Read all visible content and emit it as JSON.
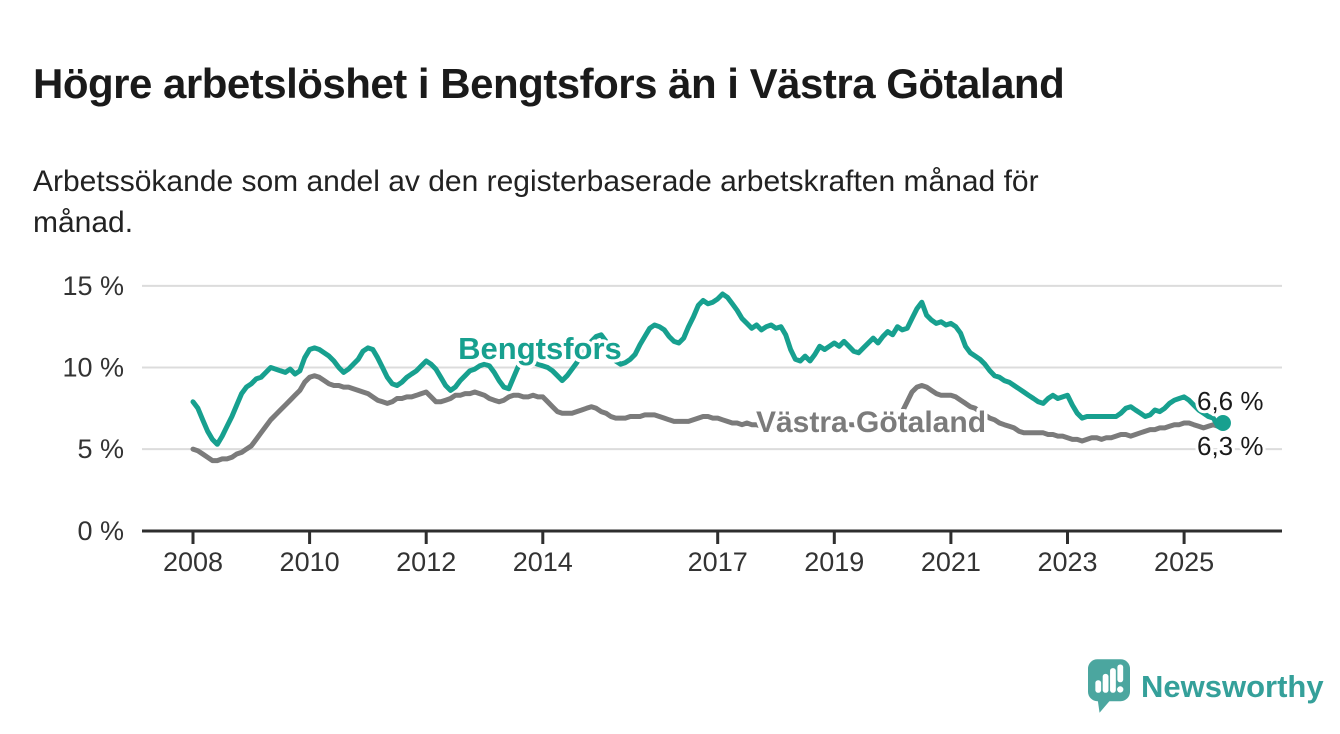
{
  "header": {
    "title": "Högre arbetslöshet i Bengtsfors än i Västra Götaland",
    "subtitle": "Arbetssökande som andel av den registerbaserade arbetskraften månad för\nmånad."
  },
  "branding": {
    "logo_text": "Newsworthy",
    "logo_icon": "newsworthy-chart-bubble-icon",
    "icon_color": "#4ba69f",
    "text_color": "#35a09a"
  },
  "chart_data": {
    "type": "line",
    "title": "Högre arbetslöshet i Bengtsfors än i Västra Götaland",
    "xlabel": "",
    "ylabel": "",
    "unit": "percent of registered labour force",
    "grid": "horizontal",
    "ylim": [
      0,
      16
    ],
    "x_start": {
      "year": 2008,
      "month": 1
    },
    "x_step_months": 1,
    "x_ticks": [
      "2008",
      "2010",
      "2012",
      "2014",
      "2017",
      "2019",
      "2021",
      "2023",
      "2025"
    ],
    "y_ticks": [
      {
        "value": 0,
        "label": "0 %"
      },
      {
        "value": 5,
        "label": "5 %"
      },
      {
        "value": 10,
        "label": "10 %"
      },
      {
        "value": 15,
        "label": "15 %"
      }
    ],
    "series": [
      {
        "name": "Bengtsfors",
        "color": "#17a08f",
        "end_label": "6,6 %",
        "end_dot": true,
        "values": [
          7.9,
          7.5,
          6.8,
          6.1,
          5.6,
          5.3,
          5.8,
          6.4,
          7.0,
          7.7,
          8.4,
          8.8,
          9.0,
          9.3,
          9.4,
          9.7,
          10.0,
          9.9,
          9.8,
          9.7,
          9.9,
          9.6,
          9.8,
          10.6,
          11.1,
          11.2,
          11.1,
          10.9,
          10.7,
          10.4,
          10.0,
          9.7,
          9.9,
          10.2,
          10.5,
          11.0,
          11.2,
          11.1,
          10.6,
          10.0,
          9.4,
          9.0,
          8.9,
          9.1,
          9.4,
          9.6,
          9.8,
          10.1,
          10.4,
          10.2,
          9.9,
          9.4,
          8.9,
          8.6,
          8.8,
          9.2,
          9.5,
          9.8,
          9.9,
          10.1,
          10.2,
          10.1,
          9.7,
          9.2,
          8.8,
          8.7,
          9.4,
          10.1,
          10.2,
          10.4,
          10.3,
          10.2,
          10.1,
          10.0,
          9.8,
          9.5,
          9.2,
          9.5,
          9.9,
          10.3,
          10.8,
          11.2,
          11.6,
          11.9,
          12.0,
          11.6,
          11.0,
          10.4,
          10.2,
          10.3,
          10.5,
          10.8,
          11.4,
          11.9,
          12.4,
          12.6,
          12.5,
          12.3,
          11.9,
          11.6,
          11.5,
          11.8,
          12.5,
          13.1,
          13.8,
          14.1,
          13.9,
          14.0,
          14.2,
          14.5,
          14.3,
          13.9,
          13.5,
          13.0,
          12.7,
          12.4,
          12.6,
          12.3,
          12.5,
          12.6,
          12.4,
          12.5,
          12.0,
          11.1,
          10.5,
          10.4,
          10.7,
          10.4,
          10.8,
          11.3,
          11.1,
          11.3,
          11.5,
          11.3,
          11.6,
          11.3,
          11.0,
          10.9,
          11.2,
          11.5,
          11.8,
          11.5,
          11.9,
          12.2,
          12.0,
          12.5,
          12.3,
          12.4,
          13.0,
          13.6,
          14.0,
          13.2,
          12.9,
          12.7,
          12.8,
          12.6,
          12.7,
          12.5,
          12.1,
          11.3,
          10.9,
          10.7,
          10.5,
          10.2,
          9.8,
          9.5,
          9.4,
          9.2,
          9.1,
          8.9,
          8.7,
          8.5,
          8.3,
          8.1,
          7.9,
          7.8,
          8.1,
          8.3,
          8.1,
          8.2,
          8.3,
          7.7,
          7.2,
          6.9,
          7.0,
          7.0,
          7.0,
          7.0,
          7.0,
          7.0,
          7.0,
          7.2,
          7.5,
          7.6,
          7.4,
          7.2,
          7.0,
          7.1,
          7.4,
          7.3,
          7.5,
          7.8,
          8.0,
          8.1,
          8.2,
          8.0,
          7.7,
          7.4,
          7.2,
          7.0,
          6.9,
          6.4,
          6.6
        ]
      },
      {
        "name": "Västra Götaland",
        "color": "#7b7b7b",
        "end_label": "6,3 %",
        "end_dot": false,
        "values": [
          5.0,
          4.9,
          4.7,
          4.5,
          4.3,
          4.3,
          4.4,
          4.4,
          4.5,
          4.7,
          4.8,
          5.0,
          5.2,
          5.6,
          6.0,
          6.4,
          6.8,
          7.1,
          7.4,
          7.7,
          8.0,
          8.3,
          8.6,
          9.1,
          9.4,
          9.5,
          9.4,
          9.2,
          9.0,
          8.9,
          8.9,
          8.8,
          8.8,
          8.7,
          8.6,
          8.5,
          8.4,
          8.2,
          8.0,
          7.9,
          7.8,
          7.9,
          8.1,
          8.1,
          8.2,
          8.2,
          8.3,
          8.4,
          8.5,
          8.2,
          7.9,
          7.9,
          8.0,
          8.1,
          8.3,
          8.3,
          8.4,
          8.4,
          8.5,
          8.4,
          8.3,
          8.1,
          8.0,
          7.9,
          8.0,
          8.2,
          8.3,
          8.3,
          8.2,
          8.2,
          8.3,
          8.2,
          8.2,
          7.9,
          7.6,
          7.3,
          7.2,
          7.2,
          7.2,
          7.3,
          7.4,
          7.5,
          7.6,
          7.5,
          7.3,
          7.2,
          7.0,
          6.9,
          6.9,
          6.9,
          7.0,
          7.0,
          7.0,
          7.1,
          7.1,
          7.1,
          7.0,
          6.9,
          6.8,
          6.7,
          6.7,
          6.7,
          6.7,
          6.8,
          6.9,
          7.0,
          7.0,
          6.9,
          6.9,
          6.8,
          6.7,
          6.6,
          6.6,
          6.5,
          6.6,
          6.5,
          6.5,
          6.4,
          6.4,
          6.4,
          6.4,
          6.3,
          6.3,
          6.2,
          6.2,
          6.2,
          6.3,
          6.2,
          6.3,
          6.3,
          6.4,
          6.4,
          6.4,
          6.4,
          6.5,
          6.5,
          6.5,
          6.5,
          6.6,
          6.6,
          6.6,
          6.7,
          6.7,
          6.8,
          6.9,
          7.0,
          7.3,
          7.9,
          8.5,
          8.8,
          8.9,
          8.8,
          8.6,
          8.4,
          8.3,
          8.3,
          8.3,
          8.2,
          8.0,
          7.8,
          7.6,
          7.5,
          7.3,
          7.1,
          6.9,
          6.8,
          6.6,
          6.5,
          6.4,
          6.3,
          6.1,
          6.0,
          6.0,
          6.0,
          6.0,
          6.0,
          5.9,
          5.9,
          5.8,
          5.8,
          5.7,
          5.6,
          5.6,
          5.5,
          5.6,
          5.7,
          5.7,
          5.6,
          5.7,
          5.7,
          5.8,
          5.9,
          5.9,
          5.8,
          5.9,
          6.0,
          6.1,
          6.2,
          6.2,
          6.3,
          6.3,
          6.4,
          6.5,
          6.5,
          6.6,
          6.6,
          6.5,
          6.4,
          6.3,
          6.4,
          6.5,
          6.4,
          6.3
        ]
      }
    ],
    "colors": {
      "axis": "#2e2e2e",
      "gridline": "#dcdcdc",
      "tick_text": "#333333",
      "value_text": "#1a1a1a"
    }
  }
}
